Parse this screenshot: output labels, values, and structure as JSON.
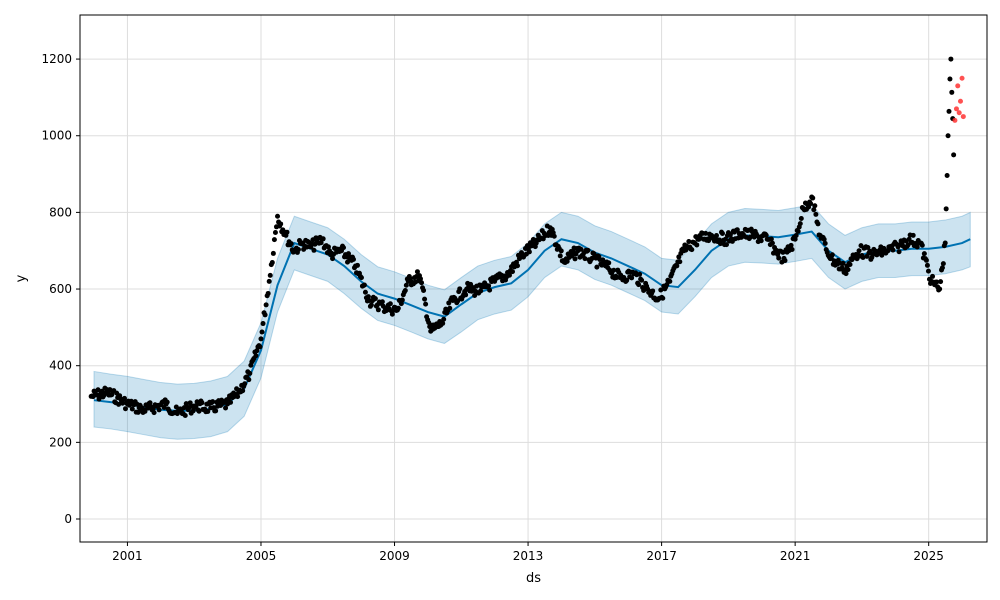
{
  "chart_data": {
    "type": "line",
    "title": "",
    "xlabel": "ds",
    "ylabel": "y",
    "xlim": [
      "1999-08-01",
      "2026-10-01"
    ],
    "ylim": [
      -60,
      1315
    ],
    "grid": true,
    "x_ticks": [
      "2001",
      "2005",
      "2009",
      "2013",
      "2017",
      "2021",
      "2025"
    ],
    "x_tick_dates": [
      "2001-01-01",
      "2005-01-01",
      "2009-01-01",
      "2013-01-01",
      "2017-01-01",
      "2021-01-01",
      "2025-01-01"
    ],
    "y_ticks": [
      0,
      200,
      400,
      600,
      800,
      1000,
      1200
    ],
    "colors": {
      "observed": "#000000",
      "forecast": "#0072B2",
      "interval": "#0072B2",
      "recent": "#ff3333",
      "grid": "#dddddd"
    },
    "series": [
      {
        "key": "forecast",
        "kind": "line",
        "x": [
          "2000-01-01",
          "2000-07-01",
          "2001-01-01",
          "2001-07-01",
          "2002-01-01",
          "2002-07-01",
          "2003-01-01",
          "2003-07-01",
          "2004-01-01",
          "2004-07-01",
          "2005-01-01",
          "2005-07-01",
          "2006-01-01",
          "2006-07-01",
          "2007-01-01",
          "2007-07-01",
          "2008-01-01",
          "2008-07-01",
          "2009-01-01",
          "2009-07-01",
          "2010-01-01",
          "2010-07-01",
          "2011-01-01",
          "2011-07-01",
          "2012-01-01",
          "2012-07-01",
          "2013-01-01",
          "2013-07-01",
          "2014-01-01",
          "2014-07-01",
          "2015-01-01",
          "2015-07-01",
          "2016-01-01",
          "2016-07-01",
          "2017-01-01",
          "2017-07-01",
          "2018-01-01",
          "2018-07-01",
          "2019-01-01",
          "2019-07-01",
          "2020-01-01",
          "2020-07-01",
          "2021-01-01",
          "2021-07-01",
          "2022-01-01",
          "2022-07-01",
          "2023-01-01",
          "2023-07-01",
          "2024-01-01",
          "2024-07-01",
          "2025-01-01",
          "2025-07-01",
          "2026-01-01",
          "2026-04-01"
        ],
        "values": [
          310,
          305,
          300,
          292,
          285,
          282,
          283,
          287,
          300,
          340,
          440,
          610,
          720,
          705,
          690,
          660,
          620,
          588,
          575,
          558,
          540,
          528,
          560,
          590,
          605,
          615,
          650,
          700,
          730,
          720,
          695,
          680,
          660,
          640,
          610,
          605,
          650,
          700,
          730,
          740,
          738,
          735,
          742,
          750,
          700,
          670,
          690,
          700,
          700,
          705,
          705,
          710,
          720,
          730
        ]
      },
      {
        "key": "interval",
        "kind": "band",
        "x": [
          "2000-01-01",
          "2000-07-01",
          "2001-01-01",
          "2001-07-01",
          "2002-01-01",
          "2002-07-01",
          "2003-01-01",
          "2003-07-01",
          "2004-01-01",
          "2004-07-01",
          "2005-01-01",
          "2005-07-01",
          "2006-01-01",
          "2006-07-01",
          "2007-01-01",
          "2007-07-01",
          "2008-01-01",
          "2008-07-01",
          "2009-01-01",
          "2009-07-01",
          "2010-01-01",
          "2010-07-01",
          "2011-01-01",
          "2011-07-01",
          "2012-01-01",
          "2012-07-01",
          "2013-01-01",
          "2013-07-01",
          "2014-01-01",
          "2014-07-01",
          "2015-01-01",
          "2015-07-01",
          "2016-01-01",
          "2016-07-01",
          "2017-01-01",
          "2017-07-01",
          "2018-01-01",
          "2018-07-01",
          "2019-01-01",
          "2019-07-01",
          "2020-01-01",
          "2020-07-01",
          "2021-01-01",
          "2021-07-01",
          "2022-01-01",
          "2022-07-01",
          "2023-01-01",
          "2023-07-01",
          "2024-01-01",
          "2024-07-01",
          "2025-01-01",
          "2025-07-01",
          "2026-01-01",
          "2026-04-01"
        ],
        "lower": [
          240,
          235,
          228,
          220,
          212,
          208,
          210,
          215,
          228,
          268,
          368,
          540,
          650,
          635,
          620,
          588,
          550,
          518,
          505,
          488,
          470,
          458,
          488,
          520,
          535,
          545,
          580,
          630,
          660,
          650,
          625,
          610,
          590,
          570,
          540,
          535,
          580,
          630,
          660,
          670,
          668,
          665,
          672,
          680,
          630,
          600,
          620,
          630,
          630,
          635,
          635,
          640,
          650,
          658
        ],
        "upper": [
          385,
          378,
          372,
          364,
          356,
          352,
          354,
          360,
          372,
          412,
          512,
          680,
          790,
          775,
          760,
          730,
          690,
          658,
          645,
          628,
          610,
          598,
          630,
          660,
          675,
          685,
          720,
          770,
          800,
          790,
          765,
          750,
          730,
          710,
          680,
          675,
          720,
          770,
          800,
          810,
          808,
          805,
          812,
          820,
          770,
          740,
          760,
          770,
          770,
          775,
          775,
          780,
          790,
          800
        ]
      },
      {
        "key": "observed",
        "kind": "scatter",
        "x": [
          "1999-12-01",
          "2000-06-01",
          "2001-01-01",
          "2001-07-01",
          "2002-03-01",
          "2002-07-01",
          "2003-01-01",
          "2003-07-01",
          "2004-01-01",
          "2004-05-01",
          "2004-09-01",
          "2005-01-01",
          "2005-04-01",
          "2005-07-01",
          "2005-10-01",
          "2006-01-01",
          "2006-04-01",
          "2006-07-01",
          "2006-11-01",
          "2007-02-01",
          "2007-06-01",
          "2007-11-01",
          "2008-04-01",
          "2008-09-01",
          "2009-02-01",
          "2009-06-01",
          "2009-10-01",
          "2010-02-01",
          "2010-06-01",
          "2010-10-01",
          "2011-03-01",
          "2011-08-01",
          "2012-01-01",
          "2012-06-01",
          "2012-11-01",
          "2013-04-01",
          "2013-09-01",
          "2014-02-01",
          "2014-07-01",
          "2014-12-01",
          "2015-05-01",
          "2015-10-01",
          "2016-03-01",
          "2016-08-01",
          "2016-12-01",
          "2017-04-01",
          "2017-09-01",
          "2018-02-01",
          "2018-07-01",
          "2018-12-01",
          "2019-05-01",
          "2019-10-01",
          "2020-03-01",
          "2020-06-01",
          "2020-09-01",
          "2021-01-01",
          "2021-04-01",
          "2021-07-01",
          "2021-10-01",
          "2022-02-01",
          "2022-07-01",
          "2022-12-01",
          "2023-05-01",
          "2023-10-01",
          "2024-02-01",
          "2024-06-01",
          "2024-10-01",
          "2025-02-01",
          "2025-05-01",
          "2025-07-01",
          "2025-08-01",
          "2025-09-01",
          "2025-10-01"
        ],
        "values": [
          320,
          330,
          300,
          285,
          300,
          275,
          295,
          290,
          300,
          330,
          380,
          470,
          620,
          790,
          740,
          700,
          720,
          710,
          730,
          690,
          700,
          660,
          570,
          555,
          545,
          620,
          635,
          490,
          510,
          570,
          600,
          595,
          620,
          640,
          690,
          720,
          760,
          670,
          700,
          680,
          660,
          630,
          640,
          600,
          575,
          620,
          700,
          730,
          740,
          730,
          745,
          740,
          730,
          700,
          680,
          730,
          810,
          840,
          740,
          680,
          650,
          700,
          690,
          700,
          710,
          730,
          720,
          620,
          600,
          720,
          1000,
          1200,
          950
        ]
      },
      {
        "key": "recent",
        "kind": "scatter",
        "x": [
          "2025-10-15",
          "2025-11-01",
          "2025-11-15",
          "2025-12-01",
          "2025-12-15",
          "2026-01-01",
          "2026-01-15"
        ],
        "values": [
          1040,
          1070,
          1130,
          1060,
          1090,
          1150,
          1050
        ]
      }
    ]
  }
}
